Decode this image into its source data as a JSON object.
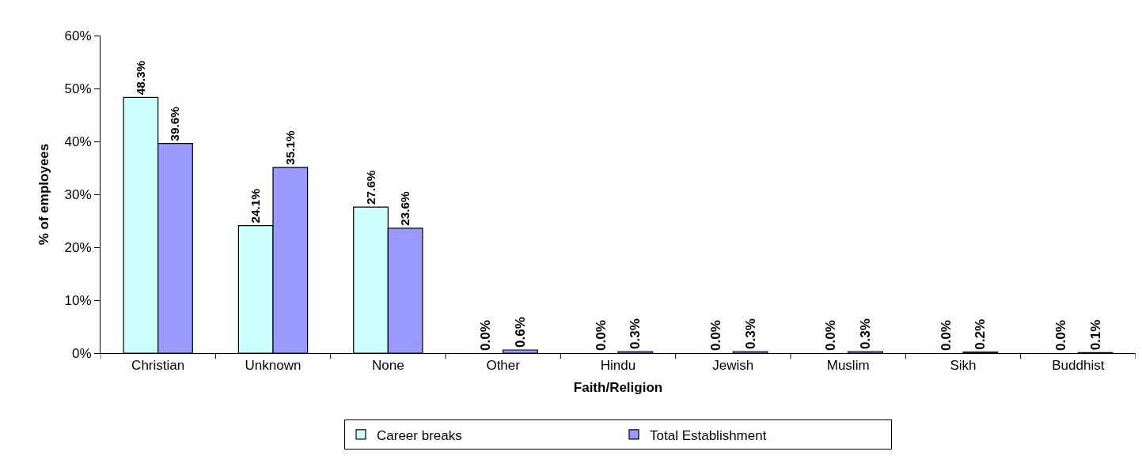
{
  "chart_data": {
    "type": "bar",
    "xlabel": "Faith/Religion",
    "ylabel": "% of employees",
    "categories": [
      "Christian",
      "Unknown",
      "None",
      "Other",
      "Hindu",
      "Jewish",
      "Muslim",
      "Sikh",
      "Buddhist"
    ],
    "series": [
      {
        "name": "Career breaks",
        "color": "#ccffff",
        "values": [
          48.3,
          24.1,
          27.6,
          0.0,
          0.0,
          0.0,
          0.0,
          0.0,
          0.0
        ],
        "value_labels": [
          "48.3%",
          "24.1%",
          "27.6%",
          "0.0%",
          "0.0%",
          "0.0%",
          "0.0%",
          "0.0%",
          "0.0%"
        ]
      },
      {
        "name": "Total Establishment",
        "color": "#9999ff",
        "values": [
          39.6,
          35.1,
          23.6,
          0.6,
          0.3,
          0.3,
          0.3,
          0.2,
          0.1
        ],
        "value_labels": [
          "39.6%",
          "35.1%",
          "23.6%",
          "0.6%",
          "0.3%",
          "0.3%",
          "0.3%",
          "0.2%",
          "0.1%"
        ]
      }
    ],
    "ylim": [
      0,
      60
    ],
    "yticks": [
      {
        "value": 0,
        "label": "0%"
      },
      {
        "value": 10,
        "label": "10%"
      },
      {
        "value": 20,
        "label": "20%"
      },
      {
        "value": 30,
        "label": "30%"
      },
      {
        "value": 40,
        "label": "40%"
      },
      {
        "value": 50,
        "label": "50%"
      },
      {
        "value": 60,
        "label": "60%"
      }
    ],
    "legend": "bottom"
  }
}
